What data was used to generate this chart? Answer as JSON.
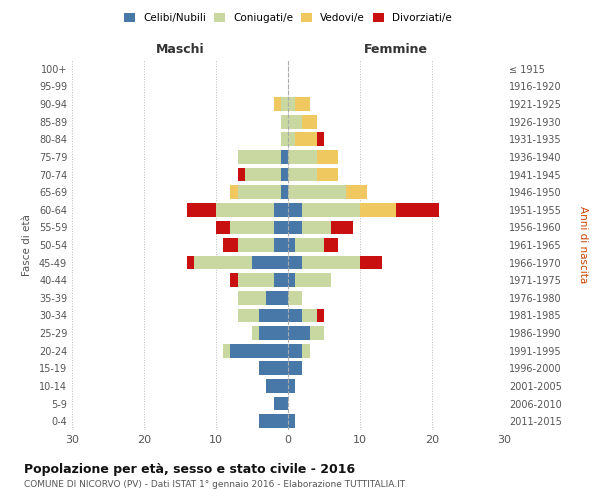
{
  "age_groups": [
    "0-4",
    "5-9",
    "10-14",
    "15-19",
    "20-24",
    "25-29",
    "30-34",
    "35-39",
    "40-44",
    "45-49",
    "50-54",
    "55-59",
    "60-64",
    "65-69",
    "70-74",
    "75-79",
    "80-84",
    "85-89",
    "90-94",
    "95-99",
    "100+"
  ],
  "birth_years": [
    "2011-2015",
    "2006-2010",
    "2001-2005",
    "1996-2000",
    "1991-1995",
    "1986-1990",
    "1981-1985",
    "1976-1980",
    "1971-1975",
    "1966-1970",
    "1961-1965",
    "1956-1960",
    "1951-1955",
    "1946-1950",
    "1941-1945",
    "1936-1940",
    "1931-1935",
    "1926-1930",
    "1921-1925",
    "1916-1920",
    "≤ 1915"
  ],
  "male": {
    "celibi": [
      4,
      2,
      3,
      4,
      8,
      4,
      4,
      3,
      2,
      5,
      2,
      2,
      2,
      1,
      1,
      1,
      0,
      0,
      0,
      0,
      0
    ],
    "coniugati": [
      0,
      0,
      0,
      0,
      1,
      1,
      3,
      4,
      5,
      8,
      5,
      6,
      8,
      6,
      5,
      6,
      1,
      1,
      1,
      0,
      0
    ],
    "vedovi": [
      0,
      0,
      0,
      0,
      0,
      0,
      0,
      0,
      0,
      0,
      0,
      0,
      0,
      1,
      0,
      0,
      0,
      0,
      1,
      0,
      0
    ],
    "divorziati": [
      0,
      0,
      0,
      0,
      0,
      0,
      0,
      0,
      1,
      1,
      2,
      2,
      4,
      0,
      1,
      0,
      0,
      0,
      0,
      0,
      0
    ]
  },
  "female": {
    "nubili": [
      1,
      0,
      1,
      2,
      2,
      3,
      2,
      0,
      1,
      2,
      1,
      2,
      2,
      0,
      0,
      0,
      0,
      0,
      0,
      0,
      0
    ],
    "coniugate": [
      0,
      0,
      0,
      0,
      1,
      2,
      2,
      2,
      5,
      8,
      4,
      4,
      8,
      8,
      4,
      4,
      1,
      2,
      1,
      0,
      0
    ],
    "vedove": [
      0,
      0,
      0,
      0,
      0,
      0,
      0,
      0,
      0,
      0,
      0,
      0,
      5,
      3,
      3,
      3,
      3,
      2,
      2,
      0,
      0
    ],
    "divorziate": [
      0,
      0,
      0,
      0,
      0,
      0,
      1,
      0,
      0,
      3,
      2,
      3,
      6,
      0,
      0,
      0,
      1,
      0,
      0,
      0,
      0
    ]
  },
  "colors": {
    "celibi_nubili": "#4878a8",
    "coniugati": "#c8d8a0",
    "vedovi": "#f0c860",
    "divorziati": "#c81010"
  },
  "xlim": 30,
  "title": "Popolazione per età, sesso e stato civile - 2016",
  "subtitle": "COMUNE DI NICORVO (PV) - Dati ISTAT 1° gennaio 2016 - Elaborazione TUTTITALIA.IT",
  "xlabel_left": "Maschi",
  "xlabel_right": "Femmine",
  "ylabel_left": "Fasce di età",
  "ylabel_right": "Anni di nascita",
  "legend_labels": [
    "Celibi/Nubili",
    "Coniugati/e",
    "Vedovi/e",
    "Divorziati/e"
  ]
}
